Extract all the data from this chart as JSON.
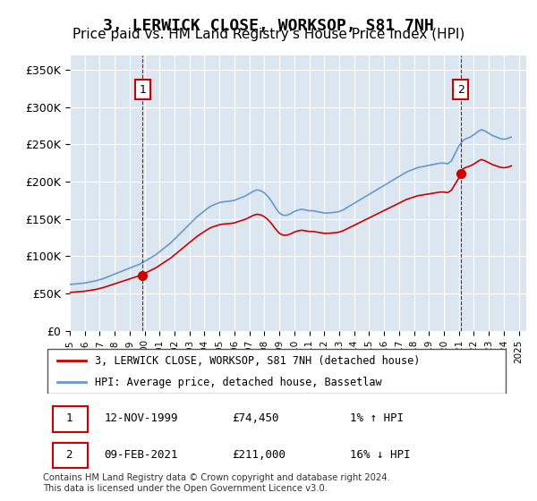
{
  "title": "3, LERWICK CLOSE, WORKSOP, S81 7NH",
  "subtitle": "Price paid vs. HM Land Registry's House Price Index (HPI)",
  "title_fontsize": 13,
  "subtitle_fontsize": 11,
  "ylabel_ticks": [
    "£0",
    "£50K",
    "£100K",
    "£150K",
    "£200K",
    "£250K",
    "£300K",
    "£350K"
  ],
  "ytick_values": [
    0,
    50000,
    100000,
    150000,
    200000,
    250000,
    300000,
    350000
  ],
  "ylim": [
    0,
    370000
  ],
  "xlim_start": 1995.0,
  "xlim_end": 2025.5,
  "background_color": "#dce6f1",
  "plot_bg_color": "#dce6f1",
  "line1_color": "#cc0000",
  "line2_color": "#6699cc",
  "vline_color": "#cc0000",
  "marker_color": "#cc0000",
  "grid_color": "#ffffff",
  "legend_border_color": "#333333",
  "purchase1_x": 1999.87,
  "purchase1_y": 74450,
  "purchase2_x": 2021.11,
  "purchase2_y": 211000,
  "label1_text": "1",
  "label2_text": "2",
  "legend_line1": "3, LERWICK CLOSE, WORKSOP, S81 7NH (detached house)",
  "legend_line2": "HPI: Average price, detached house, Bassetlaw",
  "table_rows": [
    [
      "1",
      "12-NOV-1999",
      "£74,450",
      "1% ↑ HPI"
    ],
    [
      "2",
      "09-FEB-2021",
      "£211,000",
      "16% ↓ HPI"
    ]
  ],
  "footnote": "Contains HM Land Registry data © Crown copyright and database right 2024.\nThis data is licensed under the Open Government Licence v3.0.",
  "hpi_data": {
    "x": [
      1995.0,
      1995.25,
      1995.5,
      1995.75,
      1996.0,
      1996.25,
      1996.5,
      1996.75,
      1997.0,
      1997.25,
      1997.5,
      1997.75,
      1998.0,
      1998.25,
      1998.5,
      1998.75,
      1999.0,
      1999.25,
      1999.5,
      1999.75,
      2000.0,
      2000.25,
      2000.5,
      2000.75,
      2001.0,
      2001.25,
      2001.5,
      2001.75,
      2002.0,
      2002.25,
      2002.5,
      2002.75,
      2003.0,
      2003.25,
      2003.5,
      2003.75,
      2004.0,
      2004.25,
      2004.5,
      2004.75,
      2005.0,
      2005.25,
      2005.5,
      2005.75,
      2006.0,
      2006.25,
      2006.5,
      2006.75,
      2007.0,
      2007.25,
      2007.5,
      2007.75,
      2008.0,
      2008.25,
      2008.5,
      2008.75,
      2009.0,
      2009.25,
      2009.5,
      2009.75,
      2010.0,
      2010.25,
      2010.5,
      2010.75,
      2011.0,
      2011.25,
      2011.5,
      2011.75,
      2012.0,
      2012.25,
      2012.5,
      2012.75,
      2013.0,
      2013.25,
      2013.5,
      2013.75,
      2014.0,
      2014.25,
      2014.5,
      2014.75,
      2015.0,
      2015.25,
      2015.5,
      2015.75,
      2016.0,
      2016.25,
      2016.5,
      2016.75,
      2017.0,
      2017.25,
      2017.5,
      2017.75,
      2018.0,
      2018.25,
      2018.5,
      2018.75,
      2019.0,
      2019.25,
      2019.5,
      2019.75,
      2020.0,
      2020.25,
      2020.5,
      2020.75,
      2021.0,
      2021.25,
      2021.5,
      2021.75,
      2022.0,
      2022.25,
      2022.5,
      2022.75,
      2023.0,
      2023.25,
      2023.5,
      2023.75,
      2024.0,
      2024.25,
      2024.5
    ],
    "y": [
      62000,
      62500,
      63000,
      63500,
      64000,
      65000,
      66000,
      67000,
      68500,
      70000,
      72000,
      74000,
      76000,
      78000,
      80000,
      82000,
      84000,
      86000,
      88000,
      90000,
      93000,
      96000,
      99000,
      102000,
      106000,
      110000,
      114000,
      118000,
      123000,
      128000,
      133000,
      138000,
      143000,
      148000,
      153000,
      157000,
      161000,
      165000,
      168000,
      170000,
      172000,
      173000,
      173500,
      174000,
      175000,
      177000,
      179000,
      181000,
      184000,
      187000,
      189000,
      188000,
      185000,
      180000,
      173000,
      165000,
      158000,
      155000,
      155000,
      157000,
      160000,
      162000,
      163000,
      162000,
      161000,
      161000,
      160000,
      159000,
      158000,
      158000,
      158500,
      159000,
      160000,
      162000,
      165000,
      168000,
      171000,
      174000,
      177000,
      180000,
      183000,
      186000,
      189000,
      192000,
      195000,
      198000,
      201000,
      204000,
      207000,
      210000,
      213000,
      215000,
      217000,
      219000,
      220000,
      221000,
      222000,
      223000,
      224000,
      225000,
      225000,
      224000,
      228000,
      238000,
      248000,
      255000,
      258000,
      260000,
      263000,
      267000,
      270000,
      268000,
      265000,
      262000,
      260000,
      258000,
      257000,
      258000,
      260000
    ]
  }
}
